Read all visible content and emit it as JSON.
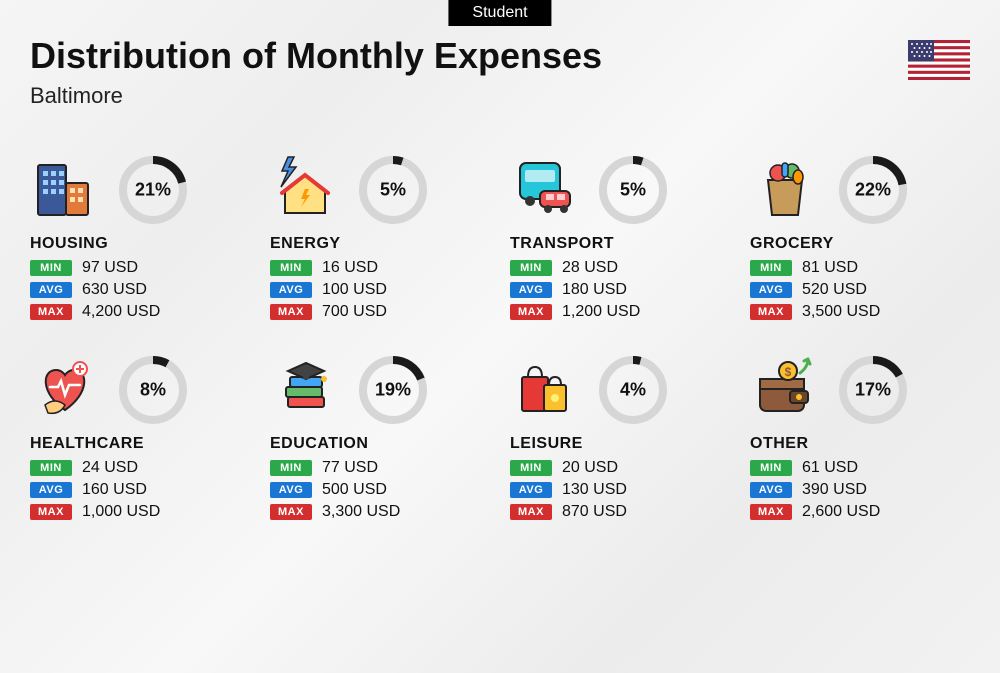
{
  "badge": "Student",
  "title": "Distribution of Monthly Expenses",
  "city": "Baltimore",
  "labels": {
    "min": "MIN",
    "avg": "AVG",
    "max": "MAX"
  },
  "colors": {
    "min": "#2ba84a",
    "avg": "#1976d2",
    "max": "#d32f2f",
    "ring_fg": "#1a1a1a",
    "ring_bg": "#d6d6d6"
  },
  "ring": {
    "radius": 30,
    "stroke_width": 8
  },
  "categories": [
    {
      "key": "housing",
      "name": "HOUSING",
      "percent": 21,
      "min": "97 USD",
      "avg": "630 USD",
      "max": "4,200 USD",
      "icon": "buildings"
    },
    {
      "key": "energy",
      "name": "ENERGY",
      "percent": 5,
      "min": "16 USD",
      "avg": "100 USD",
      "max": "700 USD",
      "icon": "energy-house"
    },
    {
      "key": "transport",
      "name": "TRANSPORT",
      "percent": 5,
      "min": "28 USD",
      "avg": "180 USD",
      "max": "1,200 USD",
      "icon": "bus-car"
    },
    {
      "key": "grocery",
      "name": "GROCERY",
      "percent": 22,
      "min": "81 USD",
      "avg": "520 USD",
      "max": "3,500 USD",
      "icon": "grocery-bag"
    },
    {
      "key": "healthcare",
      "name": "HEALTHCARE",
      "percent": 8,
      "min": "24 USD",
      "avg": "160 USD",
      "max": "1,000 USD",
      "icon": "heart-care"
    },
    {
      "key": "education",
      "name": "EDUCATION",
      "percent": 19,
      "min": "77 USD",
      "avg": "500 USD",
      "max": "3,300 USD",
      "icon": "grad-books"
    },
    {
      "key": "leisure",
      "name": "LEISURE",
      "percent": 4,
      "min": "20 USD",
      "avg": "130 USD",
      "max": "870 USD",
      "icon": "shopping-bags"
    },
    {
      "key": "other",
      "name": "OTHER",
      "percent": 17,
      "min": "61 USD",
      "avg": "390 USD",
      "max": "2,600 USD",
      "icon": "wallet"
    }
  ]
}
